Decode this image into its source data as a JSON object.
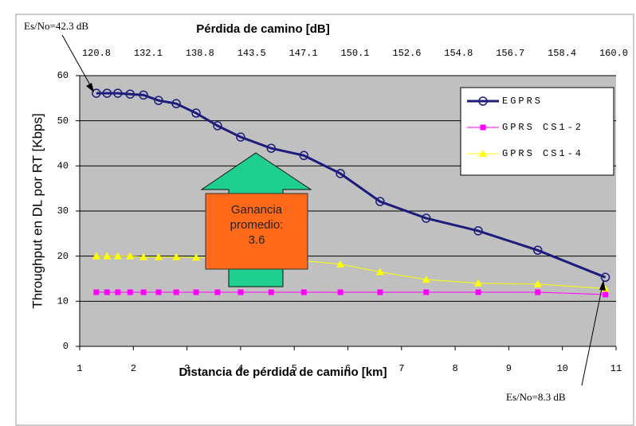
{
  "chart_data": {
    "type": "line",
    "top_axis_label": "Pérdida de camino [dB]",
    "top_categories": [
      "120.8",
      "132.1",
      "138.8",
      "143.5",
      "147.1",
      "150.1",
      "152.6",
      "154.8",
      "156.7",
      "158.4",
      "160.0"
    ],
    "xlabel": "Distancia de pérdida de camino [km]",
    "ylabel": "Throughput en DL por RT [Kbps]",
    "x": [
      1.31,
      1.51,
      1.71,
      1.94,
      2.19,
      2.47,
      2.8,
      3.17,
      3.57,
      4.0,
      4.57,
      5.18,
      5.86,
      6.6,
      7.46,
      8.43,
      9.54,
      10.8
    ],
    "series": [
      {
        "name": "EGPRS",
        "color": "#1c1c7c",
        "marker": "circle",
        "values": [
          56.1,
          56.1,
          56.1,
          55.9,
          55.7,
          54.5,
          53.8,
          51.7,
          48.9,
          46.4,
          43.9,
          42.3,
          38.3,
          32.1,
          28.4,
          25.6,
          21.3,
          15.3
        ]
      },
      {
        "name": "GPRS CS1-2",
        "color": "#ff00ff",
        "marker": "square",
        "values": [
          12,
          12,
          12,
          12,
          12,
          12,
          12,
          12,
          12,
          12,
          12,
          12,
          12,
          12,
          12,
          12,
          12,
          11.5
        ]
      },
      {
        "name": "GPRS CS1-4",
        "color": "#ffff00",
        "marker": "triangle",
        "values": [
          20,
          20,
          20,
          20,
          19.8,
          19.8,
          19.8,
          19.7,
          19.6,
          19.5,
          19.3,
          19,
          18.2,
          16.5,
          14.8,
          14,
          13.8,
          12.8
        ]
      }
    ],
    "xlim": [
      1,
      11
    ],
    "xticks": [
      1,
      2,
      3,
      4,
      5,
      6,
      7,
      8,
      9,
      10,
      11
    ],
    "ylim": [
      0,
      60
    ],
    "yticks": [
      0,
      10,
      20,
      30,
      40,
      50,
      60
    ],
    "grid": true,
    "annotations": [
      "Es/No=42.3 dB",
      "Es/No=8.3 dB"
    ],
    "gain_box": [
      "Ganancia",
      "promedio:",
      "3.6"
    ]
  }
}
